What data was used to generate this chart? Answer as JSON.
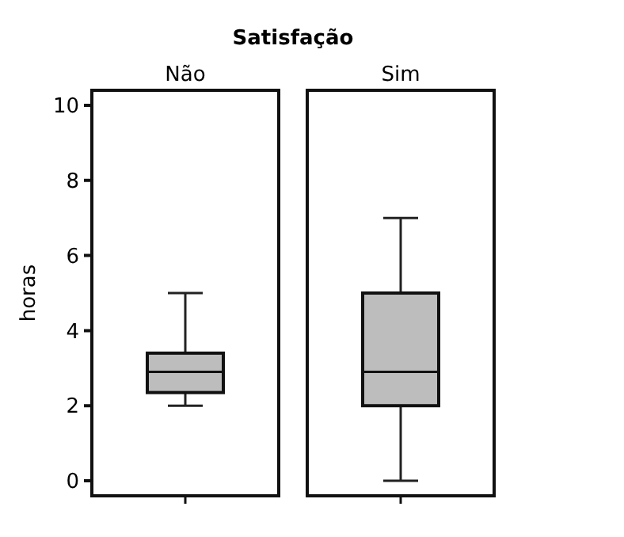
{
  "chart_data": {
    "type": "box",
    "title": "Satisfação",
    "ylabel": "horas",
    "categories": [
      "Não",
      "Sim"
    ],
    "color": "#bdbdbd",
    "boxes": [
      {
        "low": 2,
        "q1": 2.35,
        "median": 2.9,
        "q3": 3.4,
        "high": 5
      },
      {
        "low": 0,
        "q1": 2,
        "median": 2.9,
        "q3": 5,
        "high": 7
      }
    ],
    "ylim": [
      -0.4,
      10.4
    ],
    "yticks": [
      0,
      2,
      4,
      6,
      8,
      10
    ],
    "grid": false
  }
}
